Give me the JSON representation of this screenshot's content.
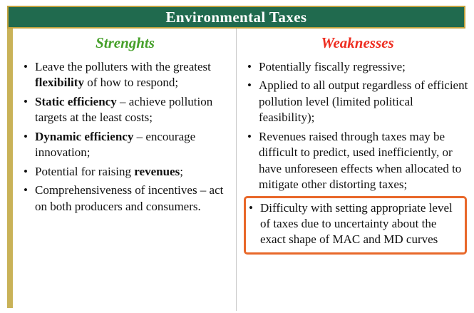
{
  "title": "Environmental Taxes",
  "colors": {
    "header_bg": "#206a4e",
    "gold_border": "#c2a23e",
    "gold_strip": "#c9b258",
    "strengths_green": "#46a02a",
    "weaknesses_red": "#ee2d20",
    "highlight_orange": "#e8682a",
    "text": "#111111"
  },
  "columns": [
    {
      "heading": "Strenghts",
      "items": [
        {
          "segments": [
            {
              "t": "Leave the polluters with the greatest "
            },
            {
              "t": "flexibility",
              "b": true
            },
            {
              "t": " of how to respond;"
            }
          ]
        },
        {
          "segments": [
            {
              "t": "Static efficiency",
              "b": true
            },
            {
              "t": " – achieve pollution targets at the least costs;"
            }
          ]
        },
        {
          "segments": [
            {
              "t": "Dynamic efficiency",
              "b": true
            },
            {
              "t": " – encourage innovation;"
            }
          ]
        },
        {
          "segments": [
            {
              "t": "Potential for raising "
            },
            {
              "t": "revenues",
              "b": true
            },
            {
              "t": ";"
            }
          ]
        },
        {
          "segments": [
            {
              "t": "Comprehensiveness of incentives – act on both producers and consumers."
            }
          ]
        }
      ]
    },
    {
      "heading": "Weaknesses",
      "items": [
        {
          "segments": [
            {
              "t": "Potentially fiscally regressive;"
            }
          ]
        },
        {
          "segments": [
            {
              "t": "Applied to all output regardless of efficient pollution level (limited political feasibility);"
            }
          ]
        },
        {
          "segments": [
            {
              "t": "Revenues raised through taxes may be difficult to predict, used inefficiently, or have unforeseen effects when allocated to mitigate other distorting taxes;"
            }
          ]
        },
        {
          "segments": [
            {
              "t": "Difficulty with setting appropriate level of taxes due to uncertainty about the exact shape of MAC and MD curves"
            }
          ],
          "highlighted": true
        }
      ]
    }
  ]
}
